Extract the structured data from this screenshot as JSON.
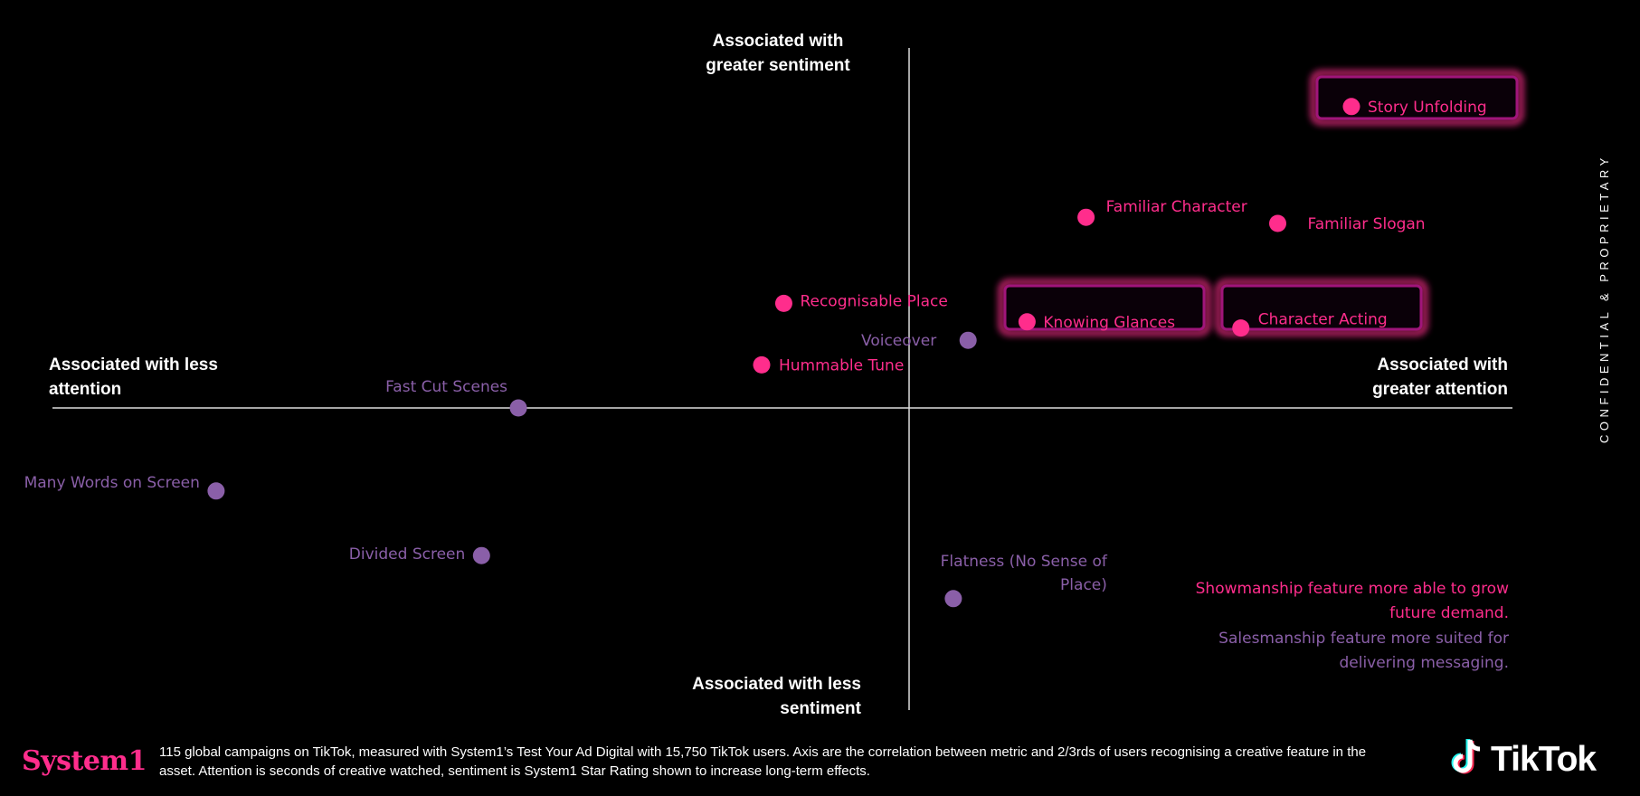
{
  "chart_data": {
    "type": "scatter",
    "x_axis": {
      "positive_label": "Associated with greater attention",
      "negative_label": "Associated with less attention"
    },
    "y_axis": {
      "positive_label": "Associated with greater sentiment",
      "negative_label": "Associated with less sentiment"
    },
    "xlim": [
      -1,
      1
    ],
    "ylim": [
      -1,
      1
    ],
    "points": [
      {
        "label": "Story Unfolding",
        "x": 0.6,
        "y": 0.98,
        "group": "showmanship",
        "highlight": true
      },
      {
        "label": "Familiar Character",
        "x": 0.24,
        "y": 0.62,
        "group": "showmanship",
        "highlight": false
      },
      {
        "label": "Familiar Slogan",
        "x": 0.5,
        "y": 0.6,
        "group": "showmanship",
        "highlight": false
      },
      {
        "label": "Recognisable Place",
        "x": -0.17,
        "y": 0.34,
        "group": "showmanship",
        "highlight": false
      },
      {
        "label": "Knowing Glances",
        "x": 0.16,
        "y": 0.28,
        "group": "showmanship",
        "highlight": true
      },
      {
        "label": "Character Acting",
        "x": 0.45,
        "y": 0.26,
        "group": "showmanship",
        "highlight": true
      },
      {
        "label": "Voiceover",
        "x": 0.08,
        "y": 0.22,
        "group": "salesmanship",
        "highlight": false
      },
      {
        "label": "Hummable Tune",
        "x": -0.2,
        "y": 0.14,
        "group": "showmanship",
        "highlight": false
      },
      {
        "label": "Fast Cut Scenes",
        "x": -0.53,
        "y": 0.0,
        "group": "salesmanship",
        "highlight": false
      },
      {
        "label": "Many Words on Screen",
        "x": -0.94,
        "y": -0.27,
        "group": "salesmanship",
        "highlight": false
      },
      {
        "label": "Divided Screen",
        "x": -0.58,
        "y": -0.48,
        "group": "salesmanship",
        "highlight": false
      },
      {
        "label": "Flatness (No Sense of Place)",
        "x": 0.06,
        "y": -0.62,
        "group": "salesmanship",
        "highlight": false
      }
    ],
    "grid": false,
    "legend": {
      "placement": "bottom-right",
      "showmanship": "Showmanship feature more able to grow future demand.",
      "salesmanship": "Salesmanship feature more suited for delivering messaging."
    }
  },
  "colors": {
    "background": "#000000",
    "showmanship": "#ff2d8c",
    "salesmanship": "#8a5fa8",
    "highlight_glow": "#a0157a",
    "axis": "#dddddd"
  },
  "side_note": "CONFIDENTIAL & PROPRIETARY",
  "footer": {
    "brand": "System1",
    "note": "115 global campaigns on TikTok, measured with System1’s Test Your Ad Digital with 15,750 TikTok users. Axis are the correlation between metric and 2/3rds of users recognising a creative feature in the asset. Attention is seconds of creative watched, sentiment is System1 Star Rating shown to increase long-term effects.",
    "logo_text": "TikTok",
    "logo_icon": "tiktok-note-icon"
  }
}
